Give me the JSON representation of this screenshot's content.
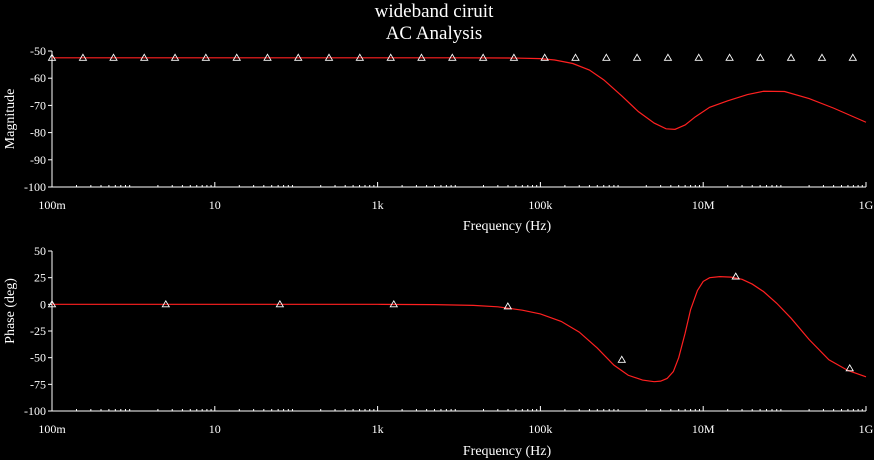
{
  "window": {
    "title": "wideband ciruit",
    "subtitle": "AC Analysis"
  },
  "colors": {
    "background": "#000000",
    "axes": "#ffffff",
    "trace": "#ff2020",
    "marker": "#ffffff"
  },
  "chart_data": [
    {
      "type": "line",
      "ylabel": "Magnitude",
      "xlabel": "Frequency (Hz)",
      "xscale": "log",
      "xlim": [
        0.1,
        1000000000
      ],
      "ylim": [
        -100,
        -50
      ],
      "grid": false,
      "x_ticks": [
        0.1,
        10,
        1000,
        100000,
        10000000,
        1000000000
      ],
      "x_tick_labels": [
        "100m",
        "10",
        "1k",
        "100k",
        "10M",
        "1G"
      ],
      "y_ticks": [
        -50,
        -60,
        -70,
        -80,
        -90,
        -100
      ],
      "y_tick_labels": [
        "-50",
        "-60",
        "-70",
        "-80",
        "-90",
        "-100"
      ],
      "series": [
        {
          "curve_x": [
            0.1,
            1,
            10,
            100,
            1000,
            10000,
            50000,
            100000,
            150000,
            250000,
            400000,
            600000,
            1000000,
            1600000,
            2500000,
            3500000,
            4500000,
            6000000,
            8000000,
            12000000,
            20000000,
            35000000,
            55000000,
            100000000,
            200000000,
            400000000,
            1000000000
          ],
          "curve_y": [
            -52.5,
            -52.5,
            -52.5,
            -52.5,
            -52.5,
            -52.5,
            -52.6,
            -52.8,
            -53.3,
            -54.6,
            -57.0,
            -60.6,
            -66.5,
            -72.3,
            -76.5,
            -78.6,
            -78.8,
            -77.2,
            -74.2,
            -70.7,
            -68.3,
            -66.0,
            -64.8,
            -64.9,
            -67.5,
            -71.0,
            -76.2
          ],
          "marker_x": [
            0.1,
            0.24,
            0.57,
            1.36,
            3.25,
            7.77,
            18.6,
            44.4,
            106,
            253,
            605,
            1450,
            3460,
            8280,
            19800,
            47300,
            113000,
            270000,
            646000,
            1540000,
            3690000,
            8820000,
            21100000,
            50400000,
            120000000,
            288000000,
            689000000
          ],
          "marker_y": [
            -52.5,
            -52.5,
            -52.5,
            -52.5,
            -52.5,
            -52.5,
            -52.5,
            -52.5,
            -52.5,
            -52.5,
            -52.5,
            -52.5,
            -52.5,
            -52.5,
            -52.5,
            -52.5,
            -52.5,
            -52.5,
            -52.5,
            -52.5,
            -52.5,
            -52.5,
            -52.5,
            -52.5,
            -52.5,
            -52.5,
            -52.5
          ]
        }
      ]
    },
    {
      "type": "line",
      "ylabel": "Phase (deg)",
      "xlabel": "Frequency (Hz)",
      "xscale": "log",
      "xlim": [
        0.1,
        1000000000
      ],
      "ylim": [
        -100,
        50
      ],
      "grid": false,
      "x_ticks": [
        0.1,
        10,
        1000,
        100000,
        10000000,
        1000000000
      ],
      "x_tick_labels": [
        "100m",
        "10",
        "1k",
        "100k",
        "10M",
        "1G"
      ],
      "y_ticks": [
        50,
        25,
        0,
        -25,
        -50,
        -75,
        -100
      ],
      "y_tick_labels": [
        "50",
        "25",
        "0",
        "-25",
        "-50",
        "-75",
        "-100"
      ],
      "series": [
        {
          "curve_x": [
            0.1,
            1,
            10,
            100,
            1000,
            5000,
            15000,
            30000,
            60000,
            100000,
            180000,
            300000,
            500000,
            800000,
            1200000,
            1800000,
            2500000,
            3000000,
            3600000,
            4300000,
            5000000,
            6000000,
            7000000,
            8500000,
            10000000,
            12000000,
            16000000,
            22000000,
            30000000,
            40000000,
            55000000,
            80000000,
            120000000,
            200000000,
            350000000,
            600000000,
            1000000000
          ],
          "curve_y": [
            0,
            0,
            0,
            0,
            0,
            -0.3,
            -1.0,
            -2.3,
            -5.5,
            -9.0,
            -16.0,
            -26.0,
            -41.0,
            -57.0,
            -66.5,
            -71.0,
            -72.5,
            -72.0,
            -69.5,
            -63.0,
            -50.0,
            -27.0,
            -5.0,
            13.0,
            21.5,
            25.0,
            26.0,
            25.5,
            23.5,
            19.0,
            12.0,
            1.0,
            -13.0,
            -33.0,
            -52.0,
            -62.0,
            -68.0
          ],
          "marker_x": [
            0.1,
            2.5,
            63,
            1580,
            39800,
            1000000,
            25100000,
            631000000
          ],
          "marker_y": [
            0,
            0,
            0,
            0,
            -2.0,
            -52.0,
            26.0,
            -60.0
          ]
        }
      ]
    }
  ]
}
